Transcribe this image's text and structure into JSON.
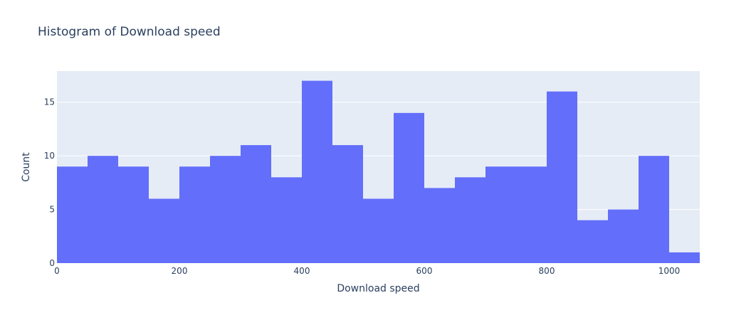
{
  "chart_data": {
    "type": "bar",
    "title": "Histogram of Download speed",
    "xlabel": "Download speed",
    "ylabel": "Count",
    "bin_width": 50,
    "x_range": [
      0,
      1050
    ],
    "ylim": [
      0,
      17.9
    ],
    "x_ticks": [
      0,
      200,
      400,
      600,
      800,
      1000
    ],
    "y_ticks": [
      0,
      5,
      10,
      15
    ],
    "bins": [
      {
        "start": 0,
        "end": 50,
        "count": 9
      },
      {
        "start": 50,
        "end": 100,
        "count": 10
      },
      {
        "start": 100,
        "end": 150,
        "count": 9
      },
      {
        "start": 150,
        "end": 200,
        "count": 6
      },
      {
        "start": 200,
        "end": 250,
        "count": 9
      },
      {
        "start": 250,
        "end": 300,
        "count": 10
      },
      {
        "start": 300,
        "end": 350,
        "count": 11
      },
      {
        "start": 350,
        "end": 400,
        "count": 8
      },
      {
        "start": 400,
        "end": 450,
        "count": 17
      },
      {
        "start": 450,
        "end": 500,
        "count": 11
      },
      {
        "start": 500,
        "end": 550,
        "count": 6
      },
      {
        "start": 550,
        "end": 600,
        "count": 14
      },
      {
        "start": 600,
        "end": 650,
        "count": 7
      },
      {
        "start": 650,
        "end": 700,
        "count": 8
      },
      {
        "start": 700,
        "end": 750,
        "count": 9
      },
      {
        "start": 750,
        "end": 800,
        "count": 9
      },
      {
        "start": 800,
        "end": 850,
        "count": 16
      },
      {
        "start": 850,
        "end": 900,
        "count": 4
      },
      {
        "start": 900,
        "end": 950,
        "count": 5
      },
      {
        "start": 950,
        "end": 1000,
        "count": 10
      },
      {
        "start": 1000,
        "end": 1050,
        "count": 1
      }
    ],
    "grid": true,
    "colors": {
      "bar": "#636efa",
      "plot_bg": "#e5ecf6",
      "grid": "#ffffff",
      "text": "#2a3f5f"
    }
  }
}
